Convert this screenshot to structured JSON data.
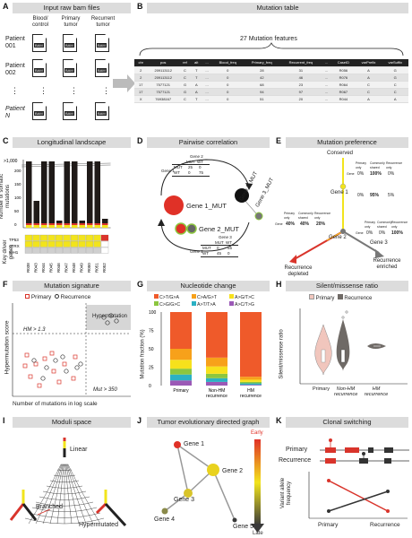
{
  "panels": {
    "a": {
      "letter": "A",
      "title": "Input raw bam files",
      "cols": [
        "Blood/ control",
        "Primary tumor",
        "Recurrent tumor"
      ],
      "patients": [
        "Patient 001",
        "Patient 002",
        "Patient N"
      ],
      "file_label": "BAM",
      "ellipsis": "⋮"
    },
    "b": {
      "letter": "B",
      "title": "Mutation table",
      "subtitle": "27 Mutation features",
      "headers": [
        "chr",
        "pos",
        "ref",
        "alt",
        "...",
        "Blood_freq",
        "Primary_freq",
        "Recurrent_freq",
        "...",
        "CaseID",
        "varPrefix",
        "varSuffix"
      ],
      "rows": [
        [
          "2",
          "209113112",
          "C",
          "T",
          "...",
          "0",
          "28",
          "31",
          "...",
          "R056",
          "A",
          "G"
        ],
        [
          "2",
          "209113112",
          "C",
          "T",
          "...",
          "0",
          "42",
          "46",
          "...",
          "R076",
          "A",
          "G"
        ],
        [
          "17",
          "7577121",
          "G",
          "A",
          "...",
          "0",
          "68",
          "23",
          "...",
          "R064",
          "C",
          "C"
        ],
        [
          "17",
          "7577121",
          "G",
          "A",
          "...",
          "0",
          "94",
          "97",
          "...",
          "R067",
          "C",
          "C"
        ],
        [
          "X",
          "76938167",
          "C",
          "T",
          "...",
          "0",
          "51",
          "20",
          "...",
          "R044",
          "A",
          "A"
        ]
      ]
    },
    "c": {
      "letter": "C",
      "title": "Longitudinal landscape",
      "ylabel": "Number of somatic mutations",
      "ytick_top": ">1,000",
      "yticks": [
        "200",
        "150",
        "100",
        "50",
        "0"
      ],
      "gene_group_label": "Key driver genes",
      "genes": [
        "TP53",
        "ATRX",
        "IDH1"
      ],
      "samples": [
        "R038",
        "R043",
        "R044",
        "R045",
        "R046",
        "R047",
        "R048",
        "R049",
        "R050",
        "R051",
        "R052"
      ]
    },
    "d": {
      "letter": "D",
      "title": "Pairwise correlation",
      "nodes": [
        "Gene 1_MUT",
        "Gene 2_MUT",
        "Gene 3_MUT"
      ],
      "t1": {
        "col_header": "Gene 2",
        "cols": [
          "MUT",
          "WT"
        ],
        "row_header": "Gene 1",
        "rows": [
          [
            "MUT",
            "25",
            "0"
          ],
          [
            "WT",
            "0",
            "75"
          ]
        ]
      },
      "t2": {
        "col_header": "Gene 3",
        "cols": [
          "MUT",
          "WT"
        ],
        "row_header": "Gene 2",
        "rows": [
          [
            "MUT",
            "0",
            "55"
          ],
          [
            "WT",
            "45",
            "0"
          ]
        ]
      }
    },
    "e": {
      "letter": "E",
      "title": "Mutation preference",
      "conserved": "Conserved",
      "gene1": "Gene 1",
      "gene2": "Gene 2",
      "gene3": "Gene 3",
      "depleted": "Recurrence depleted",
      "enriched": "Recurrence enriched",
      "subheads": [
        "Primary only",
        "Commonly shared",
        "Recurrence only"
      ],
      "g1_vals": [
        "0%",
        "100%",
        "0%"
      ],
      "g1b_vals": [
        "0%",
        "95%",
        "5%"
      ],
      "g2_vals": [
        "40%",
        "40%",
        "20%"
      ],
      "g3_vals": [
        "0%",
        "0%",
        "100%"
      ],
      "row_label": "Gene"
    },
    "f": {
      "letter": "F",
      "title": "Mutation signature",
      "legend": [
        "Primary",
        "Recurrence"
      ],
      "ylabel": "Hypermutation score",
      "xlabel": "Number of mutations in log scale",
      "hm_label": "HM > 1.3",
      "mut_label": "Mut > 350",
      "hyper_label": "Hypermutation"
    },
    "g": {
      "letter": "G",
      "title": "Nucleotide change",
      "legend": [
        "C>T/G>A",
        "C>A/G>T",
        "A>G/T>C",
        "C>G/G>C",
        "A>T/T>A",
        "A>C/T>G"
      ],
      "ylabel": "Mutation fraction (%)",
      "yticks": [
        "100",
        "75",
        "50",
        "25",
        "0"
      ],
      "cats": [
        "Primary",
        "Non-HM recurrence",
        "HM recurrence"
      ],
      "colors": [
        "#ef5a2a",
        "#f7a11a",
        "#f7e11c",
        "#8cc63f",
        "#2bb1c4",
        "#9b59b6"
      ],
      "fractions": [
        [
          50,
          15,
          12,
          8,
          8,
          7
        ],
        [
          62,
          12,
          10,
          6,
          5,
          5
        ],
        [
          88,
          4,
          3,
          2,
          2,
          1
        ]
      ]
    },
    "h": {
      "letter": "H",
      "title": "Silent/missense ratio",
      "legend": [
        "Primary",
        "Recurrence"
      ],
      "ylabel": "Silent/missense ratio",
      "cats": [
        "Primary",
        "Non-HM recurrence",
        "HM recurrence"
      ]
    },
    "i": {
      "letter": "I",
      "title": "Moduli space",
      "labels": [
        "Linear",
        "Branched",
        "Hypermutated"
      ]
    },
    "j": {
      "letter": "J",
      "title": "Tumor evolutionary directed graph",
      "nodes": [
        "Gene 1",
        "Gene 2",
        "Gene 3",
        "Gene 4",
        "Gene 5"
      ],
      "early": "Early",
      "late": "Late"
    },
    "k": {
      "letter": "K",
      "title": "Clonal switching",
      "rows": [
        "Primary",
        "Recurrence"
      ],
      "ylabel": "Variant allele frequency",
      "xcats": [
        "Primary",
        "Recurrence"
      ]
    }
  },
  "colors": {
    "primary": "#d9342b",
    "recurrence": "#6f6a66",
    "yellow": "#f2e41c",
    "panel_bar": "#dcdcdc",
    "dark": "#222222"
  }
}
